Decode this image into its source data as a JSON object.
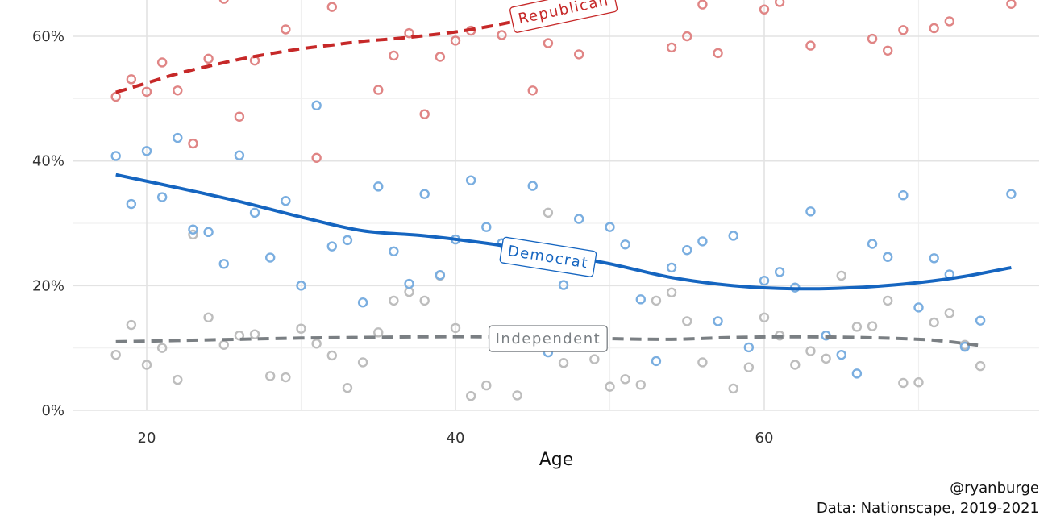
{
  "chart_data": {
    "type": "scatter",
    "title": "",
    "xlabel": "Age",
    "ylabel": "",
    "xlim": [
      15,
      78
    ],
    "ylim": [
      0,
      0.66
    ],
    "x_ticks": [
      20,
      40,
      60
    ],
    "x_tick_labels": [
      "20",
      "40",
      "60"
    ],
    "y_ticks": [
      0,
      0.2,
      0.4,
      0.6
    ],
    "y_tick_labels": [
      "0%",
      "20%",
      "40%",
      "60%"
    ],
    "grid": true,
    "legend": "none",
    "caption": [
      "@ryanburge",
      "Data: Nationscape, 2019-2021"
    ],
    "series": [
      {
        "name": "Republican",
        "color": "#c62828",
        "point_color": "#e08585",
        "line_style": "dashed",
        "label_angle": -12,
        "points": [
          [
            18,
            0.503
          ],
          [
            19,
            0.531
          ],
          [
            20,
            0.511
          ],
          [
            21,
            0.558
          ],
          [
            22,
            0.513
          ],
          [
            24,
            0.564
          ],
          [
            25,
            0.66
          ],
          [
            26,
            0.471
          ],
          [
            27,
            0.561
          ],
          [
            29,
            0.611
          ],
          [
            31,
            0.405
          ],
          [
            32,
            0.647
          ],
          [
            35,
            0.514
          ],
          [
            36,
            0.569
          ],
          [
            37,
            0.605
          ],
          [
            38,
            0.475
          ],
          [
            39,
            0.567
          ],
          [
            40,
            0.593
          ],
          [
            41,
            0.609
          ],
          [
            43,
            0.602
          ],
          [
            45,
            0.513
          ],
          [
            46,
            0.589
          ],
          [
            48,
            0.571
          ],
          [
            54,
            0.582
          ],
          [
            55,
            0.6
          ],
          [
            56,
            0.651
          ],
          [
            57,
            0.573
          ],
          [
            60,
            0.643
          ],
          [
            61,
            0.655
          ],
          [
            63,
            0.585
          ],
          [
            67,
            0.596
          ],
          [
            68,
            0.577
          ],
          [
            69,
            0.61
          ],
          [
            71,
            0.613
          ],
          [
            72,
            0.624
          ],
          [
            76,
            0.652
          ],
          [
            23,
            0.428
          ]
        ],
        "trend": [
          [
            18,
            0.51
          ],
          [
            20,
            0.525
          ],
          [
            22,
            0.54
          ],
          [
            24,
            0.552
          ],
          [
            26,
            0.563
          ],
          [
            28,
            0.572
          ],
          [
            30,
            0.58
          ],
          [
            32,
            0.586
          ],
          [
            34,
            0.592
          ],
          [
            36,
            0.596
          ],
          [
            38,
            0.601
          ],
          [
            40,
            0.607
          ],
          [
            42,
            0.615
          ],
          [
            44,
            0.625
          ],
          [
            46,
            0.637
          ],
          [
            48,
            0.652
          ],
          [
            49.5,
            0.665
          ]
        ]
      },
      {
        "name": "Democrat",
        "color": "#1565c0",
        "point_color": "#7aaee0",
        "line_style": "solid",
        "label_angle": 9,
        "points": [
          [
            18,
            0.408
          ],
          [
            19,
            0.331
          ],
          [
            20,
            0.416
          ],
          [
            21,
            0.342
          ],
          [
            22,
            0.437
          ],
          [
            23,
            0.29
          ],
          [
            24,
            0.286
          ],
          [
            25,
            0.235
          ],
          [
            26,
            0.409
          ],
          [
            27,
            0.317
          ],
          [
            28,
            0.245
          ],
          [
            29,
            0.336
          ],
          [
            30,
            0.2
          ],
          [
            31,
            0.489
          ],
          [
            32,
            0.263
          ],
          [
            33,
            0.273
          ],
          [
            34,
            0.173
          ],
          [
            35,
            0.359
          ],
          [
            36,
            0.255
          ],
          [
            37,
            0.203
          ],
          [
            38,
            0.347
          ],
          [
            39,
            0.217
          ],
          [
            40,
            0.274
          ],
          [
            41,
            0.369
          ],
          [
            42,
            0.294
          ],
          [
            43,
            0.268
          ],
          [
            45,
            0.36
          ],
          [
            46,
            0.093
          ],
          [
            47,
            0.201
          ],
          [
            48,
            0.307
          ],
          [
            50,
            0.294
          ],
          [
            51,
            0.266
          ],
          [
            52,
            0.178
          ],
          [
            53,
            0.079
          ],
          [
            54,
            0.229
          ],
          [
            55,
            0.257
          ],
          [
            56,
            0.271
          ],
          [
            57,
            0.143
          ],
          [
            58,
            0.28
          ],
          [
            59,
            0.101
          ],
          [
            60,
            0.208
          ],
          [
            61,
            0.222
          ],
          [
            62,
            0.197
          ],
          [
            63,
            0.319
          ],
          [
            64,
            0.12
          ],
          [
            65,
            0.089
          ],
          [
            66,
            0.059
          ],
          [
            67,
            0.267
          ],
          [
            68,
            0.246
          ],
          [
            69,
            0.345
          ],
          [
            70,
            0.165
          ],
          [
            71,
            0.244
          ],
          [
            72,
            0.218
          ],
          [
            73,
            0.102
          ],
          [
            74,
            0.144
          ],
          [
            76,
            0.347
          ]
        ],
        "trend": [
          [
            18,
            0.378
          ],
          [
            22,
            0.357
          ],
          [
            26,
            0.335
          ],
          [
            30,
            0.31
          ],
          [
            34,
            0.288
          ],
          [
            38,
            0.28
          ],
          [
            42,
            0.268
          ],
          [
            46,
            0.253
          ],
          [
            50,
            0.235
          ],
          [
            54,
            0.213
          ],
          [
            58,
            0.2
          ],
          [
            62,
            0.195
          ],
          [
            66,
            0.197
          ],
          [
            70,
            0.205
          ],
          [
            73,
            0.215
          ],
          [
            76,
            0.229
          ]
        ]
      },
      {
        "name": "Independent",
        "color": "#7a7f83",
        "point_color": "#bdbdbd",
        "line_style": "dashed",
        "label_angle": 0,
        "points": [
          [
            18,
            0.089
          ],
          [
            19,
            0.137
          ],
          [
            20,
            0.073
          ],
          [
            21,
            0.1
          ],
          [
            22,
            0.049
          ],
          [
            23,
            0.282
          ],
          [
            24,
            0.149
          ],
          [
            25,
            0.105
          ],
          [
            26,
            0.12
          ],
          [
            27,
            0.122
          ],
          [
            28,
            0.055
          ],
          [
            29,
            0.053
          ],
          [
            30,
            0.131
          ],
          [
            31,
            0.107
          ],
          [
            32,
            0.088
          ],
          [
            33,
            0.036
          ],
          [
            34,
            0.077
          ],
          [
            35,
            0.125
          ],
          [
            36,
            0.176
          ],
          [
            37,
            0.19
          ],
          [
            38,
            0.176
          ],
          [
            39,
            0.216
          ],
          [
            40,
            0.132
          ],
          [
            41,
            0.023
          ],
          [
            42,
            0.04
          ],
          [
            44,
            0.024
          ],
          [
            46,
            0.317
          ],
          [
            47,
            0.076
          ],
          [
            49,
            0.082
          ],
          [
            50,
            0.038
          ],
          [
            51,
            0.05
          ],
          [
            52,
            0.041
          ],
          [
            53,
            0.176
          ],
          [
            54,
            0.189
          ],
          [
            55,
            0.143
          ],
          [
            56,
            0.077
          ],
          [
            58,
            0.035
          ],
          [
            59,
            0.069
          ],
          [
            60,
            0.149
          ],
          [
            61,
            0.12
          ],
          [
            62,
            0.073
          ],
          [
            63,
            0.095
          ],
          [
            64,
            0.083
          ],
          [
            65,
            0.216
          ],
          [
            66,
            0.134
          ],
          [
            67,
            0.135
          ],
          [
            68,
            0.176
          ],
          [
            69,
            0.044
          ],
          [
            70,
            0.045
          ],
          [
            71,
            0.141
          ],
          [
            72,
            0.156
          ],
          [
            73,
            0.105
          ],
          [
            74,
            0.071
          ]
        ],
        "trend": [
          [
            18,
            0.11
          ],
          [
            22,
            0.112
          ],
          [
            26,
            0.114
          ],
          [
            30,
            0.116
          ],
          [
            34,
            0.117
          ],
          [
            38,
            0.118
          ],
          [
            42,
            0.118
          ],
          [
            46,
            0.117
          ],
          [
            50,
            0.115
          ],
          [
            54,
            0.114
          ],
          [
            58,
            0.117
          ],
          [
            62,
            0.118
          ],
          [
            66,
            0.117
          ],
          [
            70,
            0.114
          ],
          [
            72,
            0.11
          ],
          [
            74,
            0.104
          ]
        ]
      }
    ]
  }
}
